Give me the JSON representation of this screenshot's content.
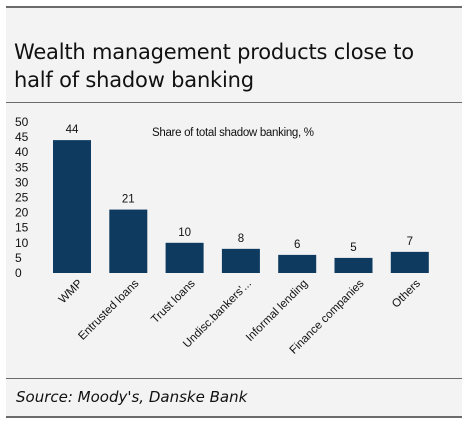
{
  "title": "Wealth management products close to half of shadow banking",
  "source": "Source: Moody's, Danske Bank",
  "colors": {
    "bar": "#0e3a60",
    "axis": "#333333",
    "text": "#111111"
  },
  "chart_data": {
    "type": "bar",
    "title": "Share of total shadow banking, %",
    "categories": [
      "WMP",
      "Entrusted loans",
      "Trust loans",
      "Undisc.bankers'...",
      "Informal lending",
      "Finance companies",
      "Others"
    ],
    "values": [
      44,
      21,
      10,
      8,
      6,
      5,
      7
    ],
    "data_labels": [
      "44",
      "21",
      "10",
      "8",
      "6",
      "5",
      "7"
    ],
    "ylim": [
      0,
      50
    ],
    "yticks": [
      0,
      5,
      10,
      15,
      20,
      25,
      30,
      35,
      40,
      45,
      50
    ],
    "grid": false,
    "legend": "none"
  }
}
